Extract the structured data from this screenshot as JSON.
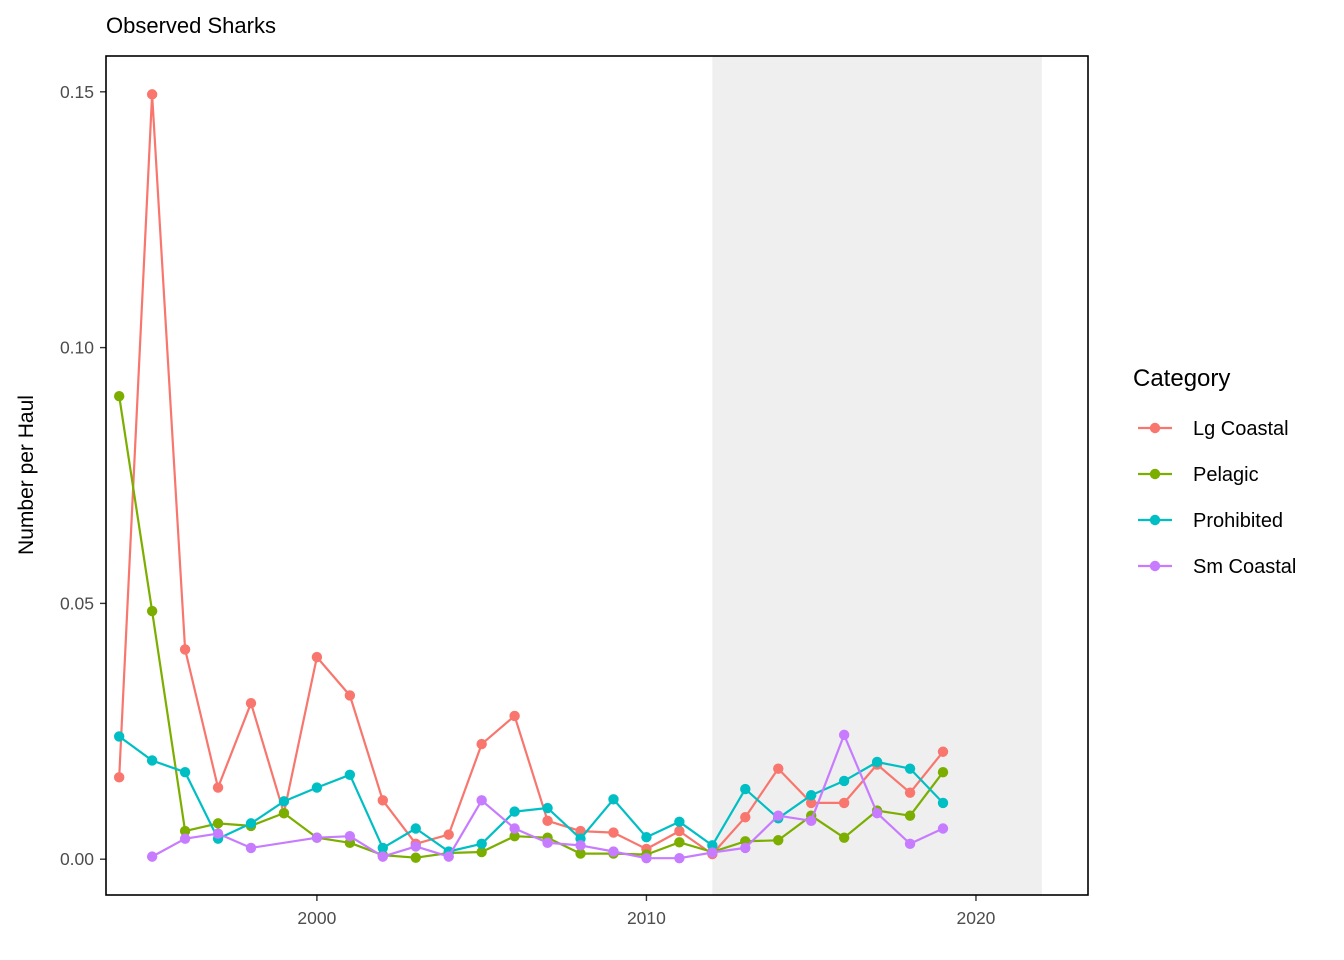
{
  "chart_data": {
    "type": "line",
    "title": "Observed Sharks",
    "xlabel": "",
    "ylabel": "Number per Haul",
    "xlim": [
      1993.6,
      2023.4
    ],
    "ylim": [
      -0.007,
      0.157
    ],
    "x_ticks": [
      2000,
      2010,
      2020
    ],
    "y_ticks": [
      0.0,
      0.05,
      0.1,
      0.15
    ],
    "y_tick_labels": [
      "0.00",
      "0.05",
      "0.10",
      "0.15"
    ],
    "grid": false,
    "shaded_region": {
      "x_start": 2012,
      "x_end": 2022,
      "color": "#efefef"
    },
    "legend": {
      "title": "Category",
      "position": "right"
    },
    "series": [
      {
        "name": "Lg Coastal",
        "color": "#F8766D",
        "x": [
          1994,
          1995,
          1996,
          1997,
          1998,
          1999,
          2000,
          2001,
          2002,
          2003,
          2004,
          2005,
          2006,
          2007,
          2008,
          2009,
          2010,
          2011,
          2012,
          2013,
          2014,
          2015,
          2016,
          2017,
          2018,
          2019
        ],
        "values": [
          0.016,
          0.1495,
          0.041,
          0.014,
          0.0305,
          0.009,
          0.0395,
          0.032,
          0.0115,
          0.003,
          0.0048,
          0.0225,
          0.028,
          0.0075,
          0.0055,
          0.0052,
          0.002,
          0.0055,
          0.001,
          0.0082,
          0.0177,
          0.011,
          0.011,
          0.0185,
          0.013,
          0.021
        ]
      },
      {
        "name": "Pelagic",
        "color": "#7CAE00",
        "x": [
          1994,
          1995,
          1996,
          1997,
          1998,
          1999,
          2000,
          2001,
          2002,
          2003,
          2004,
          2005,
          2006,
          2007,
          2008,
          2009,
          2010,
          2011,
          2012,
          2013,
          2014,
          2015,
          2016,
          2017,
          2018,
          2019
        ],
        "values": [
          0.0905,
          0.0485,
          0.0055,
          0.007,
          0.0065,
          0.009,
          0.0042,
          0.0032,
          0.0008,
          0.0003,
          0.0012,
          0.0014,
          0.0045,
          0.0042,
          0.0011,
          0.0011,
          0.0009,
          0.0033,
          0.0014,
          0.0035,
          0.0037,
          0.0085,
          0.0042,
          0.0095,
          0.0085,
          0.017
        ]
      },
      {
        "name": "Prohibited",
        "color": "#00BFC4",
        "x": [
          1994,
          1995,
          1996,
          1997,
          1998,
          1999,
          2000,
          2001,
          2002,
          2003,
          2004,
          2005,
          2006,
          2007,
          2008,
          2009,
          2010,
          2011,
          2012,
          2013,
          2014,
          2015,
          2016,
          2017,
          2018,
          2019
        ],
        "values": [
          0.024,
          0.0193,
          0.017,
          0.004,
          0.007,
          0.0113,
          0.014,
          0.0165,
          0.0022,
          0.006,
          0.0015,
          0.003,
          0.0093,
          0.01,
          0.004,
          0.0117,
          0.0043,
          0.0073,
          0.0027,
          0.0137,
          0.008,
          0.0125,
          0.0153,
          0.019,
          0.0177,
          0.011
        ]
      },
      {
        "name": "Sm Coastal",
        "color": "#C77CFF",
        "x": [
          1995,
          1996,
          1997,
          1998,
          2000,
          2001,
          2002,
          2003,
          2004,
          2005,
          2006,
          2007,
          2008,
          2009,
          2010,
          2011,
          2012,
          2013,
          2014,
          2015,
          2016,
          2017,
          2018,
          2019
        ],
        "values": [
          0.0005,
          0.004,
          0.005,
          0.0022,
          0.0042,
          0.0045,
          0.0005,
          0.0025,
          0.0005,
          0.0115,
          0.006,
          0.0032,
          0.0027,
          0.0015,
          0.0002,
          0.0002,
          0.0013,
          0.0022,
          0.0085,
          0.0075,
          0.0243,
          0.009,
          0.003,
          0.006
        ]
      }
    ]
  }
}
